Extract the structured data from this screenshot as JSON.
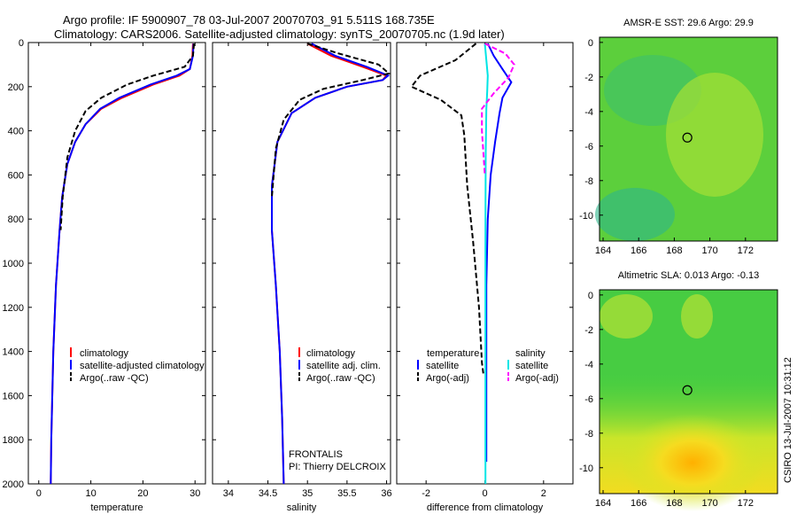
{
  "header": {
    "line1": "Argo profile: IF 5900907_78 03-Jul-2007 20070703_91 5.511S 168.735E",
    "line2": "Climatology: CARS2006. Satellite-adjusted climatology: synTS_20070705.nc (1.9d later)"
  },
  "side_credit": "CSIRO 13-Jul-2007 10:31:12",
  "float_info": {
    "project": "FRONTALIS",
    "pi": "PI: Thierry DELCROIX"
  },
  "colors": {
    "climatology": "#ff0000",
    "satellite": "#0000ff",
    "argo": "#000000",
    "sat_diff_s": "#00e5e5",
    "argo_diff_s": "#ff00ff"
  },
  "chart_data": [
    {
      "id": "temperature",
      "type": "line",
      "xlabel": "temperature",
      "ylabel": "",
      "xlim": [
        -2,
        32
      ],
      "ylim": [
        2000,
        0
      ],
      "xticks": [
        0,
        10,
        20,
        30
      ],
      "yticks": [
        0,
        200,
        400,
        600,
        800,
        1000,
        1200,
        1400,
        1600,
        1800,
        2000
      ],
      "legend": [
        "climatology",
        "satellite-adjusted climatology",
        "Argo(..raw -QC)"
      ],
      "series": [
        {
          "name": "climatology",
          "color": "#ff0000",
          "dash": false,
          "x": [
            29.6,
            29.5,
            29.0,
            27.0,
            22.0,
            16.0,
            12.0,
            9.0,
            7.0,
            5.5,
            4.5,
            4.0,
            3.3,
            2.8,
            2.4,
            2.3
          ],
          "y": [
            5,
            60,
            120,
            150,
            190,
            250,
            300,
            370,
            450,
            550,
            700,
            850,
            1100,
            1400,
            1800,
            2000
          ]
        },
        {
          "name": "satellite-adjusted climatology",
          "color": "#0000ff",
          "dash": false,
          "x": [
            29.7,
            29.6,
            29.0,
            26.5,
            21.5,
            15.5,
            11.8,
            9.0,
            7.0,
            5.5,
            4.5,
            4.0,
            3.3,
            2.8,
            2.4,
            2.3
          ],
          "y": [
            5,
            60,
            120,
            150,
            190,
            250,
            300,
            370,
            450,
            550,
            700,
            850,
            1100,
            1400,
            1800,
            2000
          ]
        },
        {
          "name": "Argo(..raw -QC)",
          "color": "#000000",
          "dash": true,
          "x": [
            29.8,
            29.6,
            28.0,
            22.0,
            17.0,
            12.0,
            9.0,
            7.0,
            5.5,
            4.6,
            4.2
          ],
          "y": [
            5,
            60,
            110,
            150,
            190,
            250,
            310,
            400,
            520,
            700,
            850
          ]
        }
      ]
    },
    {
      "id": "salinity",
      "type": "line",
      "xlabel": "salinity",
      "ylabel": "",
      "xlim": [
        33.8,
        36.05
      ],
      "ylim": [
        2000,
        0
      ],
      "xticks": [
        34,
        34.5,
        35,
        35.5,
        36
      ],
      "legend": [
        "climatology",
        "satellite adj. clim.",
        "Argo(..raw -QC)"
      ],
      "series": [
        {
          "name": "climatology",
          "color": "#ff0000",
          "dash": false,
          "x": [
            35.0,
            35.3,
            35.7,
            36.0,
            35.95,
            35.5,
            35.1,
            34.8,
            34.62,
            34.55,
            34.55,
            34.6,
            34.65,
            34.68,
            34.7
          ],
          "y": [
            5,
            60,
            110,
            150,
            170,
            200,
            250,
            320,
            450,
            650,
            850,
            1100,
            1400,
            1700,
            2000
          ]
        },
        {
          "name": "satellite adj. clim.",
          "color": "#0000ff",
          "dash": false,
          "x": [
            35.05,
            35.35,
            35.75,
            36.02,
            35.95,
            35.5,
            35.1,
            34.8,
            34.62,
            34.55,
            34.55,
            34.6,
            34.65,
            34.68,
            34.7
          ],
          "y": [
            5,
            60,
            110,
            150,
            170,
            200,
            250,
            320,
            450,
            650,
            850,
            1100,
            1400,
            1700,
            2000
          ]
        },
        {
          "name": "Argo(..raw -QC)",
          "color": "#000000",
          "dash": true,
          "x": [
            35.0,
            35.4,
            35.9,
            36.03,
            35.7,
            35.2,
            34.9,
            34.7,
            34.6,
            34.55
          ],
          "y": [
            5,
            50,
            100,
            140,
            170,
            210,
            260,
            350,
            480,
            700
          ]
        }
      ]
    },
    {
      "id": "difference",
      "type": "line",
      "xlabel": "difference from climatology",
      "ylabel": "",
      "xlim": [
        -3,
        3
      ],
      "ylim": [
        2000,
        0
      ],
      "xticks": [
        -2,
        0,
        2
      ],
      "legend_titles": [
        "temperature",
        "salinity"
      ],
      "legend": [
        "satellite",
        "Argo(-adj)",
        "satellite",
        "Argo(-adj)"
      ],
      "series": [
        {
          "name": "satellite",
          "color": "#0000ff",
          "dash": false,
          "group": "temperature",
          "x": [
            0.1,
            0.3,
            0.6,
            0.9,
            0.6,
            0.5,
            0.35,
            0.2,
            0.1,
            0.05,
            0.05,
            0.05
          ],
          "y": [
            5,
            60,
            120,
            180,
            250,
            320,
            450,
            600,
            800,
            1100,
            1500,
            1900
          ]
        },
        {
          "name": "Argo(-adj)",
          "color": "#000000",
          "dash": true,
          "group": "temperature",
          "x": [
            -0.3,
            -1.0,
            -2.2,
            -2.5,
            -1.5,
            -0.8,
            -0.7,
            -0.6,
            -0.4,
            -0.2,
            -0.1,
            -0.05
          ],
          "y": [
            5,
            80,
            150,
            200,
            260,
            330,
            420,
            650,
            900,
            1200,
            1450,
            1500
          ]
        },
        {
          "name": "satellite",
          "color": "#00e5e5",
          "dash": false,
          "group": "salinity",
          "x": [
            0.0,
            0.05,
            0.1,
            0.08,
            0.05,
            0.03,
            0.02,
            0.02,
            0.02,
            0.02
          ],
          "y": [
            5,
            80,
            150,
            220,
            300,
            500,
            800,
            1200,
            1600,
            2000
          ]
        },
        {
          "name": "Argo(-adj)",
          "color": "#ff00ff",
          "dash": true,
          "group": "salinity",
          "x": [
            0.0,
            0.7,
            1.0,
            0.8,
            0.3,
            -0.1,
            -0.1,
            0.0
          ],
          "y": [
            5,
            50,
            100,
            160,
            230,
            300,
            400,
            600
          ]
        }
      ]
    },
    {
      "id": "sst_map",
      "type": "heatmap",
      "title": "AMSR-E SST: 29.6 Argo: 29.9",
      "xlim": [
        163.8,
        173.8
      ],
      "ylim": [
        -11.5,
        0.3
      ],
      "xticks": [
        164,
        166,
        168,
        170,
        172
      ],
      "yticks": [
        0,
        -2,
        -4,
        -6,
        -8,
        -10
      ],
      "marker": [
        168.735,
        -5.511
      ]
    },
    {
      "id": "sla_map",
      "type": "heatmap",
      "title": "Altimetric SLA: 0.013 Argo: -0.13",
      "xlim": [
        163.8,
        173.8
      ],
      "ylim": [
        -11.5,
        0.3
      ],
      "xticks": [
        164,
        166,
        168,
        170,
        172
      ],
      "yticks": [
        0,
        -2,
        -4,
        -6,
        -8,
        -10
      ],
      "marker": [
        168.735,
        -5.511
      ]
    }
  ]
}
